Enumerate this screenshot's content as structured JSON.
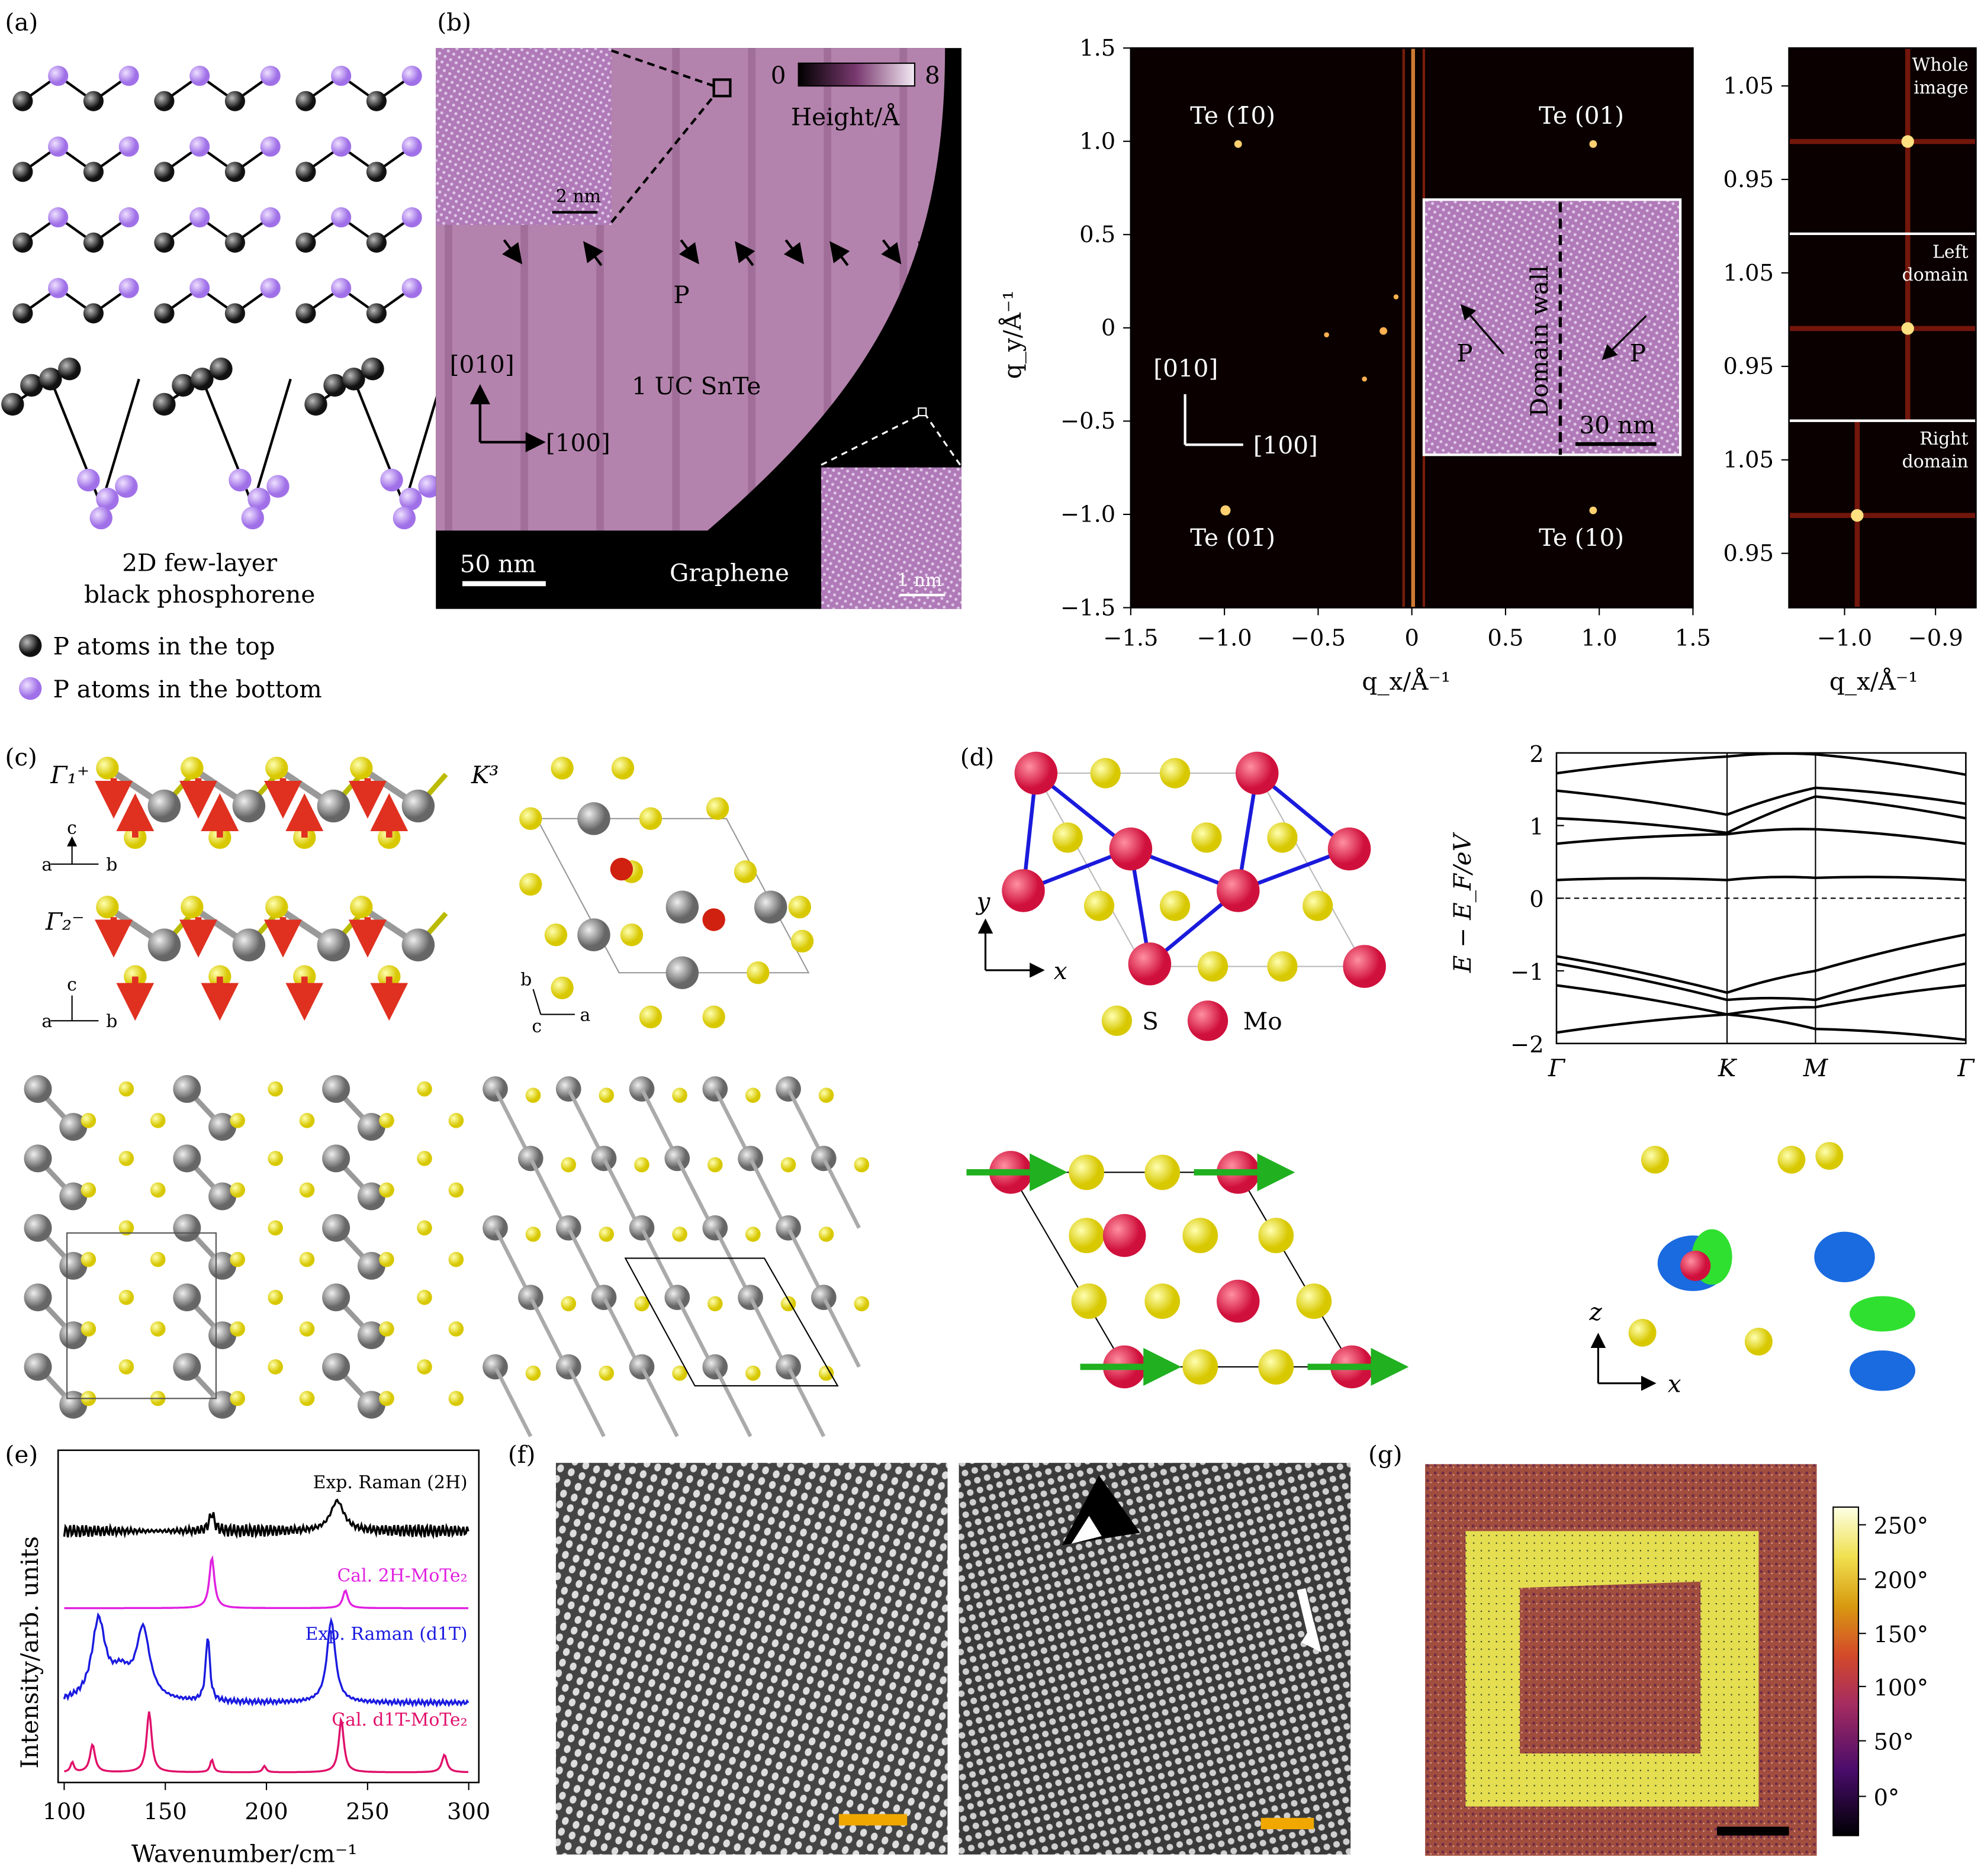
{
  "panel_a": {
    "label": "(a)",
    "caption_line1": "2D few-layer",
    "caption_line2": "black phosphorene",
    "legend_top": "P atoms in the top",
    "legend_bottom": "P atoms in the bottom",
    "colors": {
      "top_atom": "#2a2a2a",
      "bottom_atom": "#b48cf0"
    }
  },
  "panel_b": {
    "label": "(b)",
    "colorbar_min": "0",
    "colorbar_max": "8",
    "colorbar_label": "Height/Å",
    "inset_scale": "2 nm",
    "arrow_label": "P",
    "dir_010": "[010]",
    "dir_100": "[100]",
    "film_label": "1 UC SnTe",
    "scale_bar": "50 nm",
    "substrate_label": "Graphene",
    "inset2_scale": "1 nm",
    "colors": {
      "film": "#b07aa6",
      "substrate": "#000000"
    }
  },
  "fft": {
    "y_ticks": [
      "1.5",
      "1.0",
      "0.5",
      "0",
      "−0.5",
      "−1.0",
      "−1.5"
    ],
    "x_ticks": [
      "−1.5",
      "−1.0",
      "−0.5",
      "0",
      "0.5",
      "1.0",
      "1.5"
    ],
    "ylabel": "q_y/Å⁻¹",
    "xlabel": "q_x/Å⁻¹",
    "spot_labels": [
      "Te (1̄0)",
      "Te (01)",
      "Te (01̄)",
      "Te (10)"
    ],
    "dir_010": "[010]",
    "dir_100": "[100]",
    "inset": {
      "left_label": "P",
      "wall_label": "Domain wall",
      "right_label": "P",
      "scale": "30 nm"
    }
  },
  "zoom_strip": {
    "y_ticks": [
      "1.05",
      "0.95"
    ],
    "x_ticks": [
      "−1.0",
      "−0.9"
    ],
    "xlabel": "q_x/Å⁻¹",
    "panels": [
      {
        "line1": "Whole",
        "line2": "image"
      },
      {
        "line1": "Left",
        "line2": "domain"
      },
      {
        "line1": "Right",
        "line2": "domain"
      }
    ]
  },
  "panel_c": {
    "label": "(c)",
    "mode1": "Γ₁⁺",
    "mode2": "Γ₂⁻",
    "mode3": "K³",
    "axes1": {
      "c": "c",
      "a": "a",
      "b": "b"
    },
    "axes3": {
      "b": "b",
      "c": "c",
      "a": "a"
    },
    "colors": {
      "S": "#e6d800",
      "Mo": "#8c8c8c",
      "arrow": "#e03020"
    }
  },
  "panel_d": {
    "label": "(d)",
    "axis_y": "y",
    "axis_x": "x",
    "legend_s": "S",
    "legend_mo": "Mo",
    "axis_z": "z",
    "axis_x2": "x",
    "band": {
      "y_ticks": [
        "2",
        "1",
        "0",
        "−1",
        "−2"
      ],
      "k_labels": [
        "Γ",
        "K",
        "M",
        "Γ"
      ],
      "ylabel": "E − E_F/eV"
    },
    "colors": {
      "S": "#f0e000",
      "Mo": "#e0184a",
      "bond": "#1a1adc",
      "arrow": "#20b020"
    }
  },
  "panel_e": {
    "label": "(e)",
    "curves": [
      {
        "label": "Exp. Raman (2H)",
        "color": "#000000"
      },
      {
        "label": "Cal. 2H-MoTe₂",
        "color": "#e020e0"
      },
      {
        "label": "Exp. Raman (d1T)",
        "color": "#1a1ae0"
      },
      {
        "label": "Cal. d1T-MoTe₂",
        "color": "#e0106a"
      }
    ],
    "x_ticks": [
      "100",
      "150",
      "200",
      "250",
      "300"
    ],
    "xlabel": "Wavenumber/cm⁻¹",
    "ylabel": "Intensity/arb. units"
  },
  "panel_f": {
    "label": "(f)",
    "scale_color": "#f0a800"
  },
  "panel_g": {
    "label": "(g)",
    "colorbar_ticks": [
      "250°",
      "200°",
      "150°",
      "100°",
      "50°",
      "0°"
    ],
    "colors": {
      "background": "#a8503c",
      "ring": "#e8e050"
    }
  }
}
